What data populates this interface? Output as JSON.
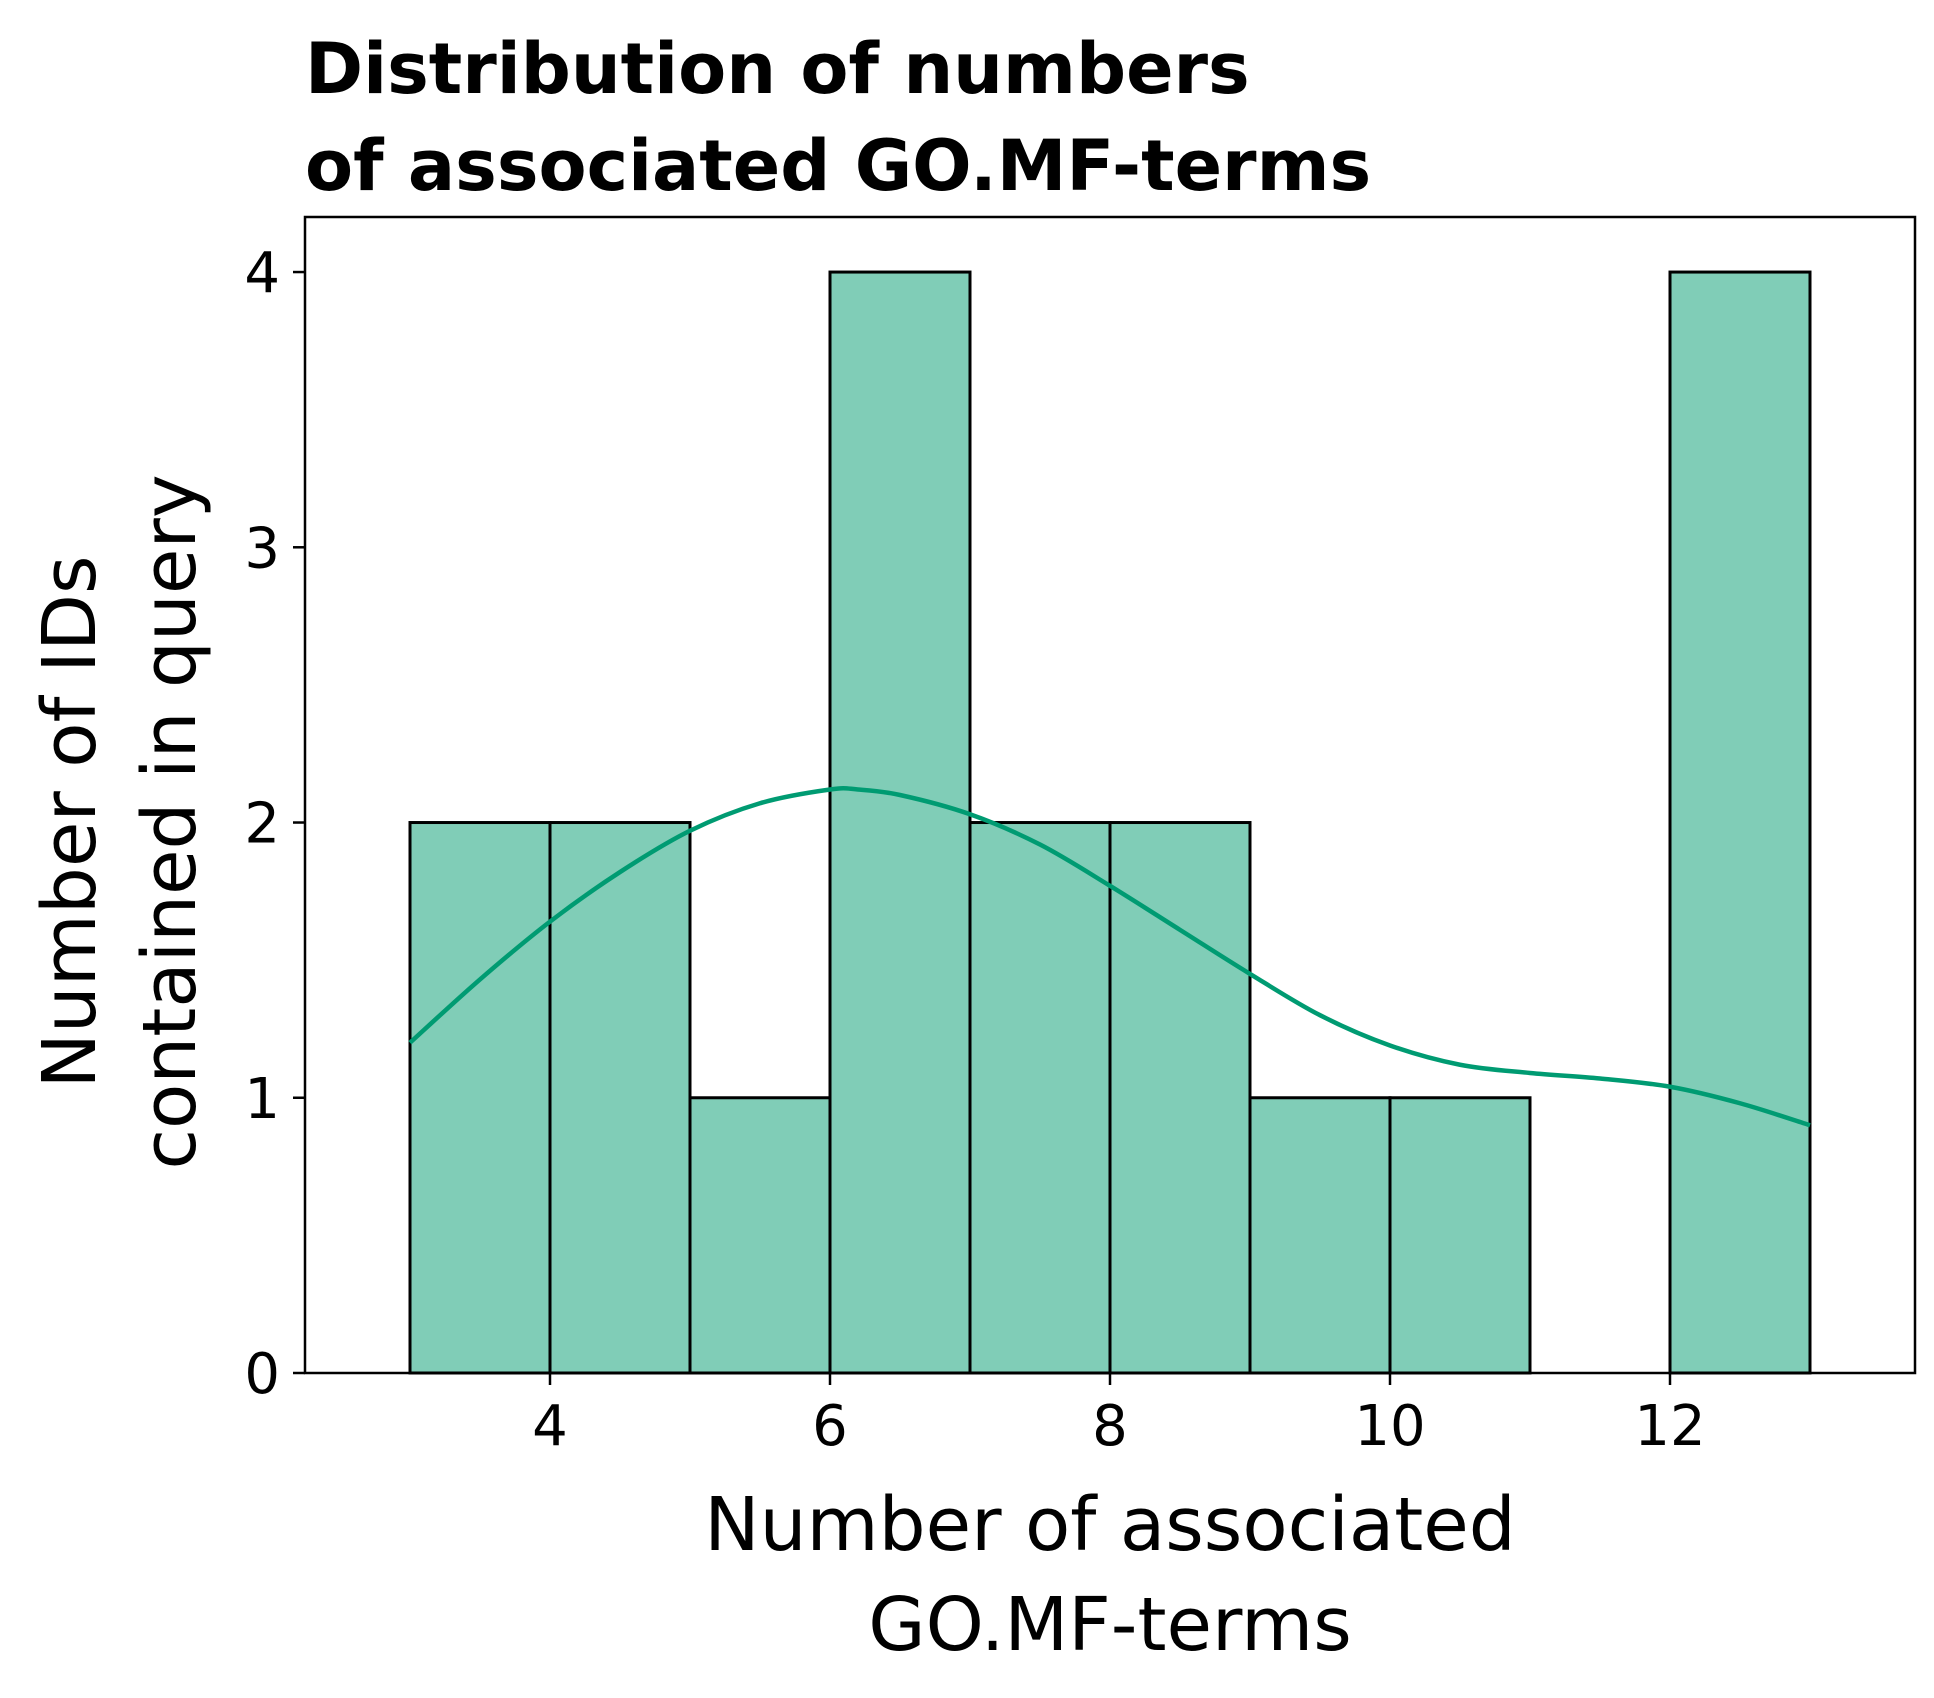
{
  "chart_data": {
    "type": "bar",
    "subtype": "histogram-with-kde",
    "title_lines": [
      "Distribution of numbers",
      "of associated GO.MF-terms"
    ],
    "xlabel_lines": [
      "Number of associated",
      "GO.MF-terms"
    ],
    "ylabel_lines": [
      "Number of IDs",
      "contained in query"
    ],
    "xlim": [
      2.25,
      13.75
    ],
    "ylim": [
      0,
      4.2
    ],
    "xticks": [
      4,
      6,
      8,
      10,
      12
    ],
    "yticks": [
      0,
      1,
      2,
      3,
      4
    ],
    "bins": [
      {
        "x0": 3,
        "x1": 4,
        "count": 2
      },
      {
        "x0": 4,
        "x1": 5,
        "count": 2
      },
      {
        "x0": 5,
        "x1": 6,
        "count": 1
      },
      {
        "x0": 6,
        "x1": 7,
        "count": 4
      },
      {
        "x0": 7,
        "x1": 8,
        "count": 2
      },
      {
        "x0": 8,
        "x1": 9,
        "count": 2
      },
      {
        "x0": 9,
        "x1": 10,
        "count": 1
      },
      {
        "x0": 10,
        "x1": 11,
        "count": 1
      },
      {
        "x0": 11,
        "x1": 12,
        "count": 0
      },
      {
        "x0": 12,
        "x1": 13,
        "count": 4
      }
    ],
    "kde": {
      "x": [
        3.0,
        3.5,
        4.0,
        4.5,
        5.0,
        5.5,
        6.0,
        6.2,
        6.5,
        7.0,
        7.5,
        8.0,
        8.5,
        9.0,
        9.5,
        10.0,
        10.5,
        11.0,
        11.5,
        12.0,
        12.5,
        13.0
      ],
      "y": [
        1.2,
        1.43,
        1.64,
        1.82,
        1.97,
        2.07,
        2.12,
        2.12,
        2.1,
        2.03,
        1.92,
        1.77,
        1.61,
        1.45,
        1.3,
        1.19,
        1.12,
        1.09,
        1.07,
        1.04,
        0.98,
        0.9
      ]
    },
    "grid": false,
    "legend": "none",
    "colors": {
      "bar_fill": "#80cdb7",
      "bar_edge": "#000000",
      "kde_line": "#009b72"
    }
  }
}
